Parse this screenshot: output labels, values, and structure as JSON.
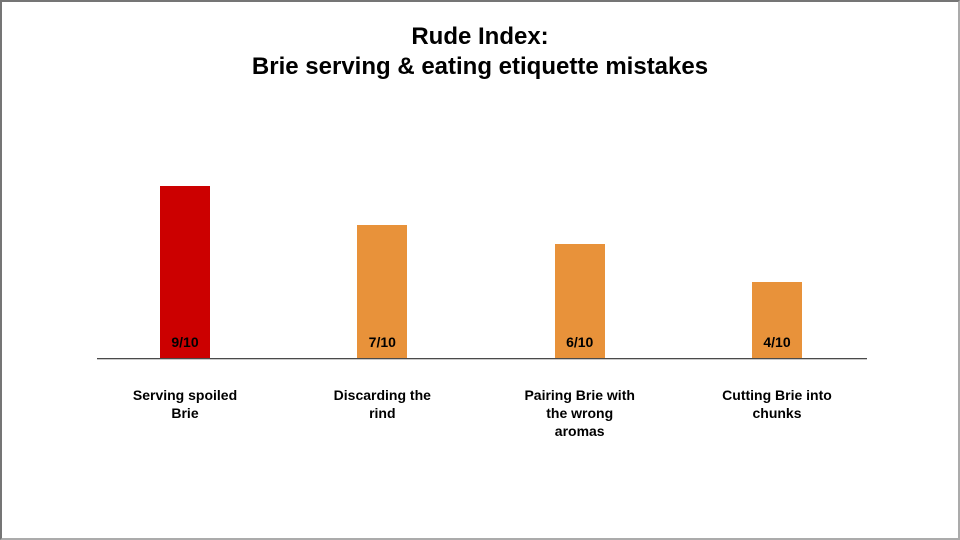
{
  "chart_data": {
    "type": "bar",
    "title": "Rude Index:\nBrie serving & eating etiquette mistakes",
    "categories": [
      "Serving spoiled Brie",
      "Discarding the rind",
      "Pairing Brie with the wrong aromas",
      "Cutting Brie into chunks"
    ],
    "categories_wrapped": [
      "Serving spoiled\nBrie",
      "Discarding the\nrind",
      "Pairing Brie with\nthe wrong\naromas",
      "Cutting Brie into\nchunks"
    ],
    "values": [
      9,
      7,
      6,
      4
    ],
    "value_labels": [
      "9/10",
      "7/10",
      "6/10",
      "4/10"
    ],
    "max_value": 10,
    "xlabel": "",
    "ylabel": "",
    "grid": false,
    "legend": false,
    "bar_colors": [
      "#CC0000",
      "#E8923A",
      "#E8923A",
      "#E8923A"
    ],
    "value_label_color": "#000000",
    "axis_line_color": "#4a4a4a"
  }
}
